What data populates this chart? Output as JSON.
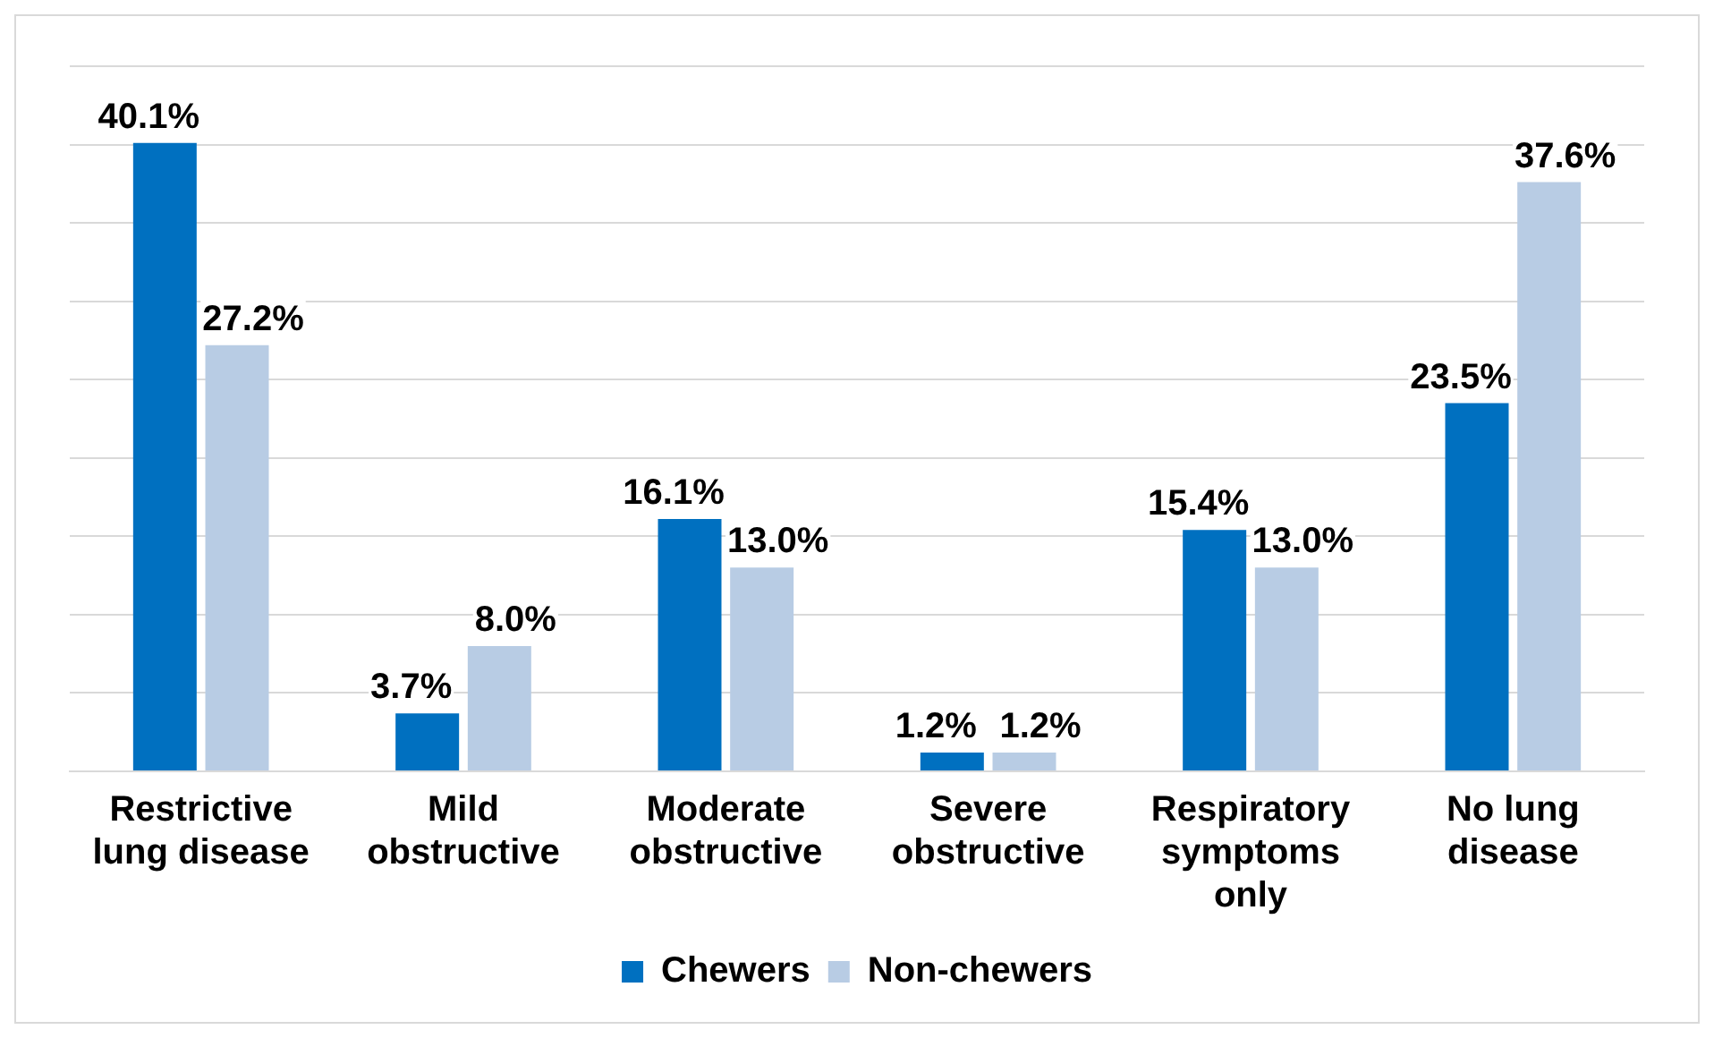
{
  "chart_data": {
    "type": "bar",
    "categories": [
      "Restrictive lung disease",
      "Mild obstructive",
      "Moderate obstructive",
      "Severe obstructive",
      "Respiratory symptoms only",
      "No lung disease"
    ],
    "series": [
      {
        "name": "Chewers",
        "color": "#0070c0",
        "values": [
          40.1,
          3.7,
          16.1,
          1.2,
          15.4,
          23.5
        ],
        "value_labels": [
          "40.1%",
          "3.7%",
          "16.1%",
          "1.2%",
          "15.4%",
          "23.5%"
        ]
      },
      {
        "name": "Non-chewers",
        "color": "#b8cce4",
        "values": [
          27.2,
          8.0,
          13.0,
          1.2,
          13.0,
          37.6
        ],
        "value_labels": [
          "27.2%",
          "8.0%",
          "13.0%",
          "1.2%",
          "13.0%",
          "37.6%"
        ]
      }
    ],
    "ylim": [
      0,
      45
    ],
    "yticks": [
      {
        "value": 0,
        "label": null
      },
      {
        "value": 5,
        "label": null
      },
      {
        "value": 10,
        "label": null
      },
      {
        "value": 15,
        "label": null
      },
      {
        "value": 20,
        "label": null
      },
      {
        "value": 25,
        "label": null
      },
      {
        "value": 30,
        "label": null
      },
      {
        "value": 35,
        "label": null
      },
      {
        "value": 40,
        "label": null
      },
      {
        "value": 45,
        "label": null
      }
    ],
    "tick_labels": "x",
    "grid": "y",
    "legend": "bottom"
  }
}
